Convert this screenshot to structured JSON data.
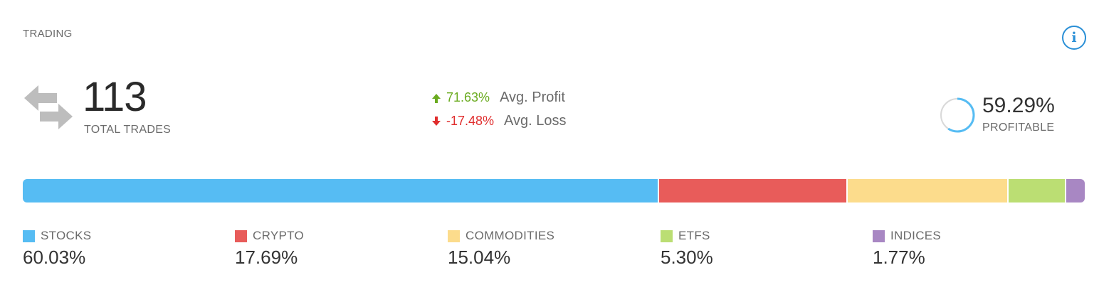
{
  "widget": {
    "title": "TRADING",
    "info_icon": "info-circle-icon",
    "info_glyph": "i"
  },
  "summary": {
    "total_trades": "113",
    "total_trades_label": "TOTAL TRADES",
    "trades_icon": "swap-arrows-icon",
    "avg_profit": {
      "value": "71.63%",
      "label": "Avg. Profit",
      "icon": "arrow-up-icon",
      "color": "#6aab1f"
    },
    "avg_loss": {
      "value": "-17.48%",
      "label": "Avg. Loss",
      "icon": "arrow-down-icon",
      "color": "#e02d2d"
    },
    "profitable": {
      "value": "59.29%",
      "label": "PROFITABLE",
      "fraction": 0.5929
    }
  },
  "allocation": [
    {
      "name": "STOCKS",
      "value": "60.03%",
      "share": 60.03,
      "color": "#56bcf3"
    },
    {
      "name": "CRYPTO",
      "value": "17.69%",
      "share": 17.69,
      "color": "#e85c5a"
    },
    {
      "name": "COMMODITIES",
      "value": "15.04%",
      "share": 15.04,
      "color": "#fcdc8c"
    },
    {
      "name": "ETFS",
      "value": "5.30%",
      "share": 5.3,
      "color": "#bbde73"
    },
    {
      "name": "INDICES",
      "value": "1.77%",
      "share": 1.77,
      "color": "#a887c3"
    }
  ]
}
